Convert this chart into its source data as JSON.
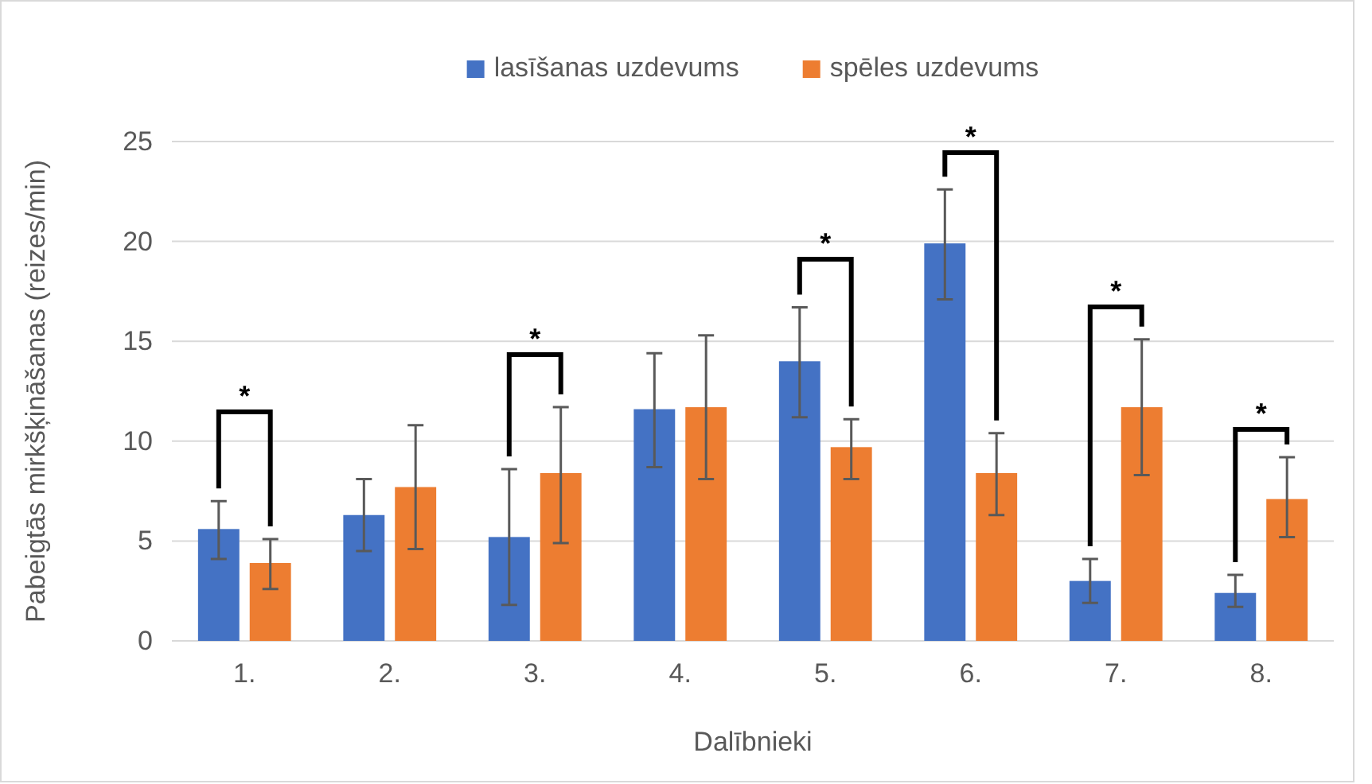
{
  "chart_data": {
    "type": "bar",
    "xlabel": "Dalībnieki",
    "ylabel": "Pabeigtās mirkšķināšanas (reizes/min)",
    "categories": [
      "1.",
      "2.",
      "3.",
      "4.",
      "5.",
      "6.",
      "7.",
      "8."
    ],
    "series": [
      {
        "name": "lasīšanas uzdevums",
        "color": "#4472c4",
        "values": [
          5.6,
          6.3,
          5.2,
          11.6,
          14.0,
          19.9,
          3.0,
          2.4
        ],
        "errors": [
          [
            4.1,
            7.0
          ],
          [
            4.5,
            8.1
          ],
          [
            1.8,
            8.6
          ],
          [
            8.7,
            14.4
          ],
          [
            11.2,
            16.7
          ],
          [
            17.1,
            22.6
          ],
          [
            1.9,
            4.1
          ],
          [
            1.7,
            3.3
          ]
        ]
      },
      {
        "name": "spēles uzdevums",
        "color": "#ed7d31",
        "values": [
          3.9,
          7.7,
          8.4,
          11.7,
          9.7,
          8.4,
          11.7,
          7.1
        ],
        "errors": [
          [
            2.6,
            5.1
          ],
          [
            4.6,
            10.8
          ],
          [
            4.9,
            11.7
          ],
          [
            8.1,
            15.3
          ],
          [
            8.1,
            11.1
          ],
          [
            6.3,
            10.4
          ],
          [
            8.3,
            15.1
          ],
          [
            5.2,
            9.2
          ]
        ]
      }
    ],
    "ylim": [
      0,
      25
    ],
    "yticks": [
      0,
      5,
      10,
      15,
      20,
      25
    ],
    "grid": "y",
    "legend": "top",
    "annotations": [
      "*",
      "*",
      "*",
      "*",
      "*",
      "*"
    ]
  }
}
